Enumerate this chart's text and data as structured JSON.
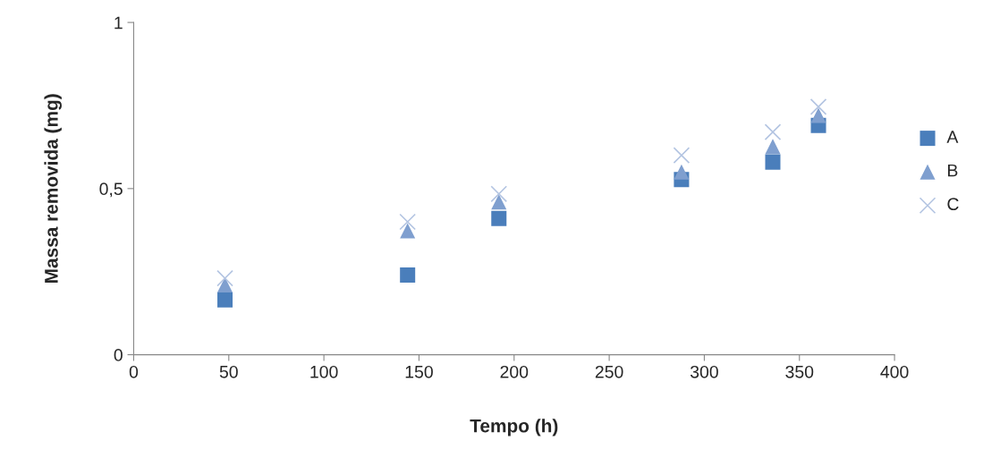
{
  "chart_data": {
    "type": "scatter",
    "xlabel": "Tempo (h)",
    "ylabel": "Massa removida (mg)",
    "x": [
      48,
      144,
      192,
      288,
      336,
      360
    ],
    "series": [
      {
        "name": "A",
        "color": "#4a7ebb",
        "marker": "square",
        "values": [
          0.165,
          0.24,
          0.41,
          0.527,
          0.58,
          0.69
        ]
      },
      {
        "name": "B",
        "color": "#7f9fcf",
        "marker": "triangle",
        "values": [
          0.21,
          0.373,
          0.46,
          0.55,
          0.627,
          0.72
        ]
      },
      {
        "name": "C",
        "color": "#b4c5e2",
        "marker": "cross",
        "values": [
          0.23,
          0.4,
          0.484,
          0.6,
          0.67,
          0.746
        ]
      }
    ],
    "xlim": [
      0,
      400
    ],
    "xticks": [
      0,
      50,
      100,
      150,
      200,
      250,
      300,
      350,
      400
    ],
    "ylim": [
      0,
      1
    ],
    "yticks": [
      0,
      {
        "value": 0.5,
        "label": "0,5"
      },
      1
    ],
    "legend": "right",
    "grid": false
  }
}
